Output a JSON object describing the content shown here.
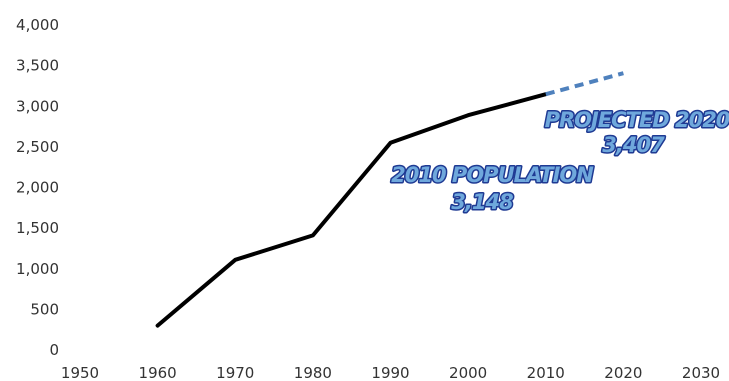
{
  "chart_data": {
    "type": "line",
    "title": "",
    "xlabel": "",
    "ylabel": "",
    "xlim": [
      1950,
      2030
    ],
    "ylim": [
      0,
      4000
    ],
    "x_ticks": [
      "1950",
      "1960",
      "1970",
      "1980",
      "1990",
      "2000",
      "2010",
      "2020",
      "2030"
    ],
    "y_ticks": [
      "0",
      "500",
      "1,000",
      "1,500",
      "2,000",
      "2,500",
      "3,000",
      "3,500",
      "4,000"
    ],
    "grid": false,
    "legend": "none",
    "series": [
      {
        "style": "solid",
        "color": "#000000",
        "points": [
          {
            "x": 1960,
            "y": 300
          },
          {
            "x": 1970,
            "y": 1110
          },
          {
            "x": 1980,
            "y": 1410
          },
          {
            "x": 1990,
            "y": 2550
          },
          {
            "x": 2000,
            "y": 2890
          },
          {
            "x": 2010,
            "y": 3148
          }
        ]
      },
      {
        "style": "dashed",
        "color": "#4f81bd",
        "points": [
          {
            "x": 2010,
            "y": 3148
          },
          {
            "x": 2020,
            "y": 3407
          }
        ]
      }
    ],
    "annotations": [
      {
        "line1": "2010 POPULATION",
        "line2": "3,148"
      },
      {
        "line1": "PROJECTED 2020",
        "line2": "3,407"
      }
    ],
    "colors": {
      "annotation_fill": "#6fa8dc",
      "annotation_stroke": "#1f3a93",
      "axis_text": "#333333"
    }
  }
}
